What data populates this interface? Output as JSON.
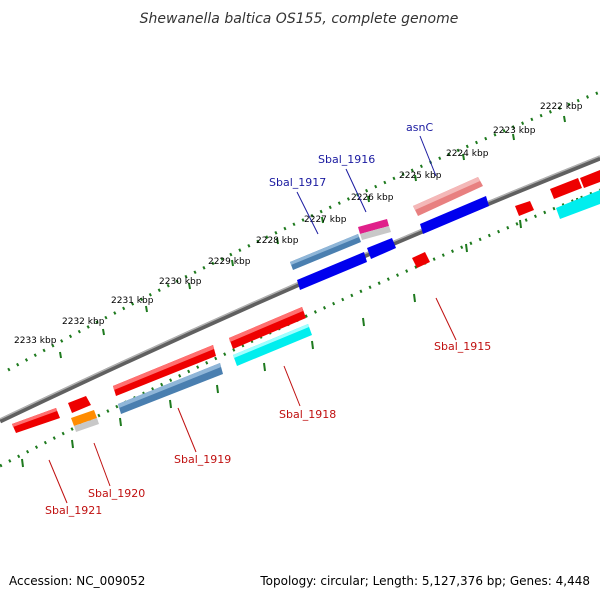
{
  "title": "Shewanella baltica OS155, complete genome",
  "footer": {
    "accession": "Accession: NC_009052",
    "summary": "Topology: circular; Length: 5,127,376 bp; Genes: 4,448"
  },
  "ticks": [
    "2222 kbp",
    "2223 kbp",
    "2224 kbp",
    "2225 kbp",
    "2226 kbp",
    "2227 kbp",
    "2228 kbp",
    "2229 kbp",
    "2230 kbp",
    "2231 kbp",
    "2232 kbp",
    "2233 kbp"
  ],
  "gene_labels": {
    "asnC": "asnC",
    "sbal_1916": "Sbal_1916",
    "sbal_1917": "Sbal_1917",
    "sbal_1915": "Sbal_1915",
    "sbal_1918": "Sbal_1918",
    "sbal_1919": "Sbal_1919",
    "sbal_1920": "Sbal_1920",
    "sbal_1921": "Sbal_1921"
  },
  "colors": {
    "backbone": "#808080",
    "tick_green": "#1e7a1e",
    "gene_red": "#ee0000",
    "gene_blue": "#0000ee",
    "gene_steelblue": "#4a7fb0",
    "gene_cyan": "#00eeee",
    "gene_pink": "#e88080",
    "gene_magenta": "#e0208a",
    "gene_orange": "#ff8c00",
    "label_blue": "#1a1aa0",
    "label_red": "#c01010"
  }
}
